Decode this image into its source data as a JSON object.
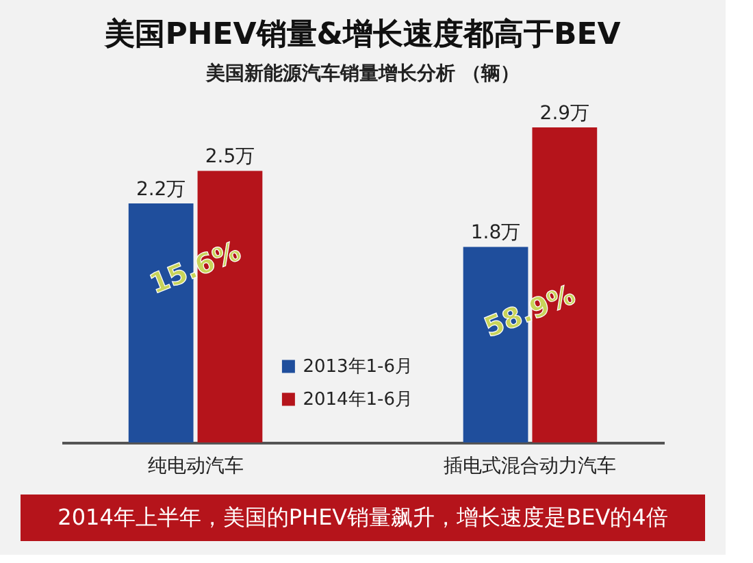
{
  "chart_data": {
    "type": "bar",
    "title": "美国PHEV销量&增长速度都高于BEV",
    "subtitle": "美国新能源汽车销量增长分析 （辆）",
    "categories": [
      "纯电动汽车",
      "插电式混合动力汽车"
    ],
    "series": [
      {
        "name": "2013年1-6月",
        "color": "#1f4e9c",
        "values": [
          2.2,
          1.8
        ],
        "value_labels": [
          "2.2万",
          "1.8万"
        ]
      },
      {
        "name": "2014年1-6月",
        "color": "#b5141b",
        "values": [
          2.5,
          2.9
        ],
        "value_labels": [
          "2.5万",
          "2.9万"
        ]
      }
    ],
    "annotations": [
      {
        "text": "15.6%",
        "x": "纯电动汽车",
        "y": 1.6
      },
      {
        "text": "58.9%",
        "x": "插电式混合动力汽车",
        "y": 1.2
      },
      "2014年上半年，美国的PHEV销量飙升，增长速度是BEV的4倍"
    ],
    "legend": "bottom",
    "tick_labels": "x",
    "grid": false
  }
}
